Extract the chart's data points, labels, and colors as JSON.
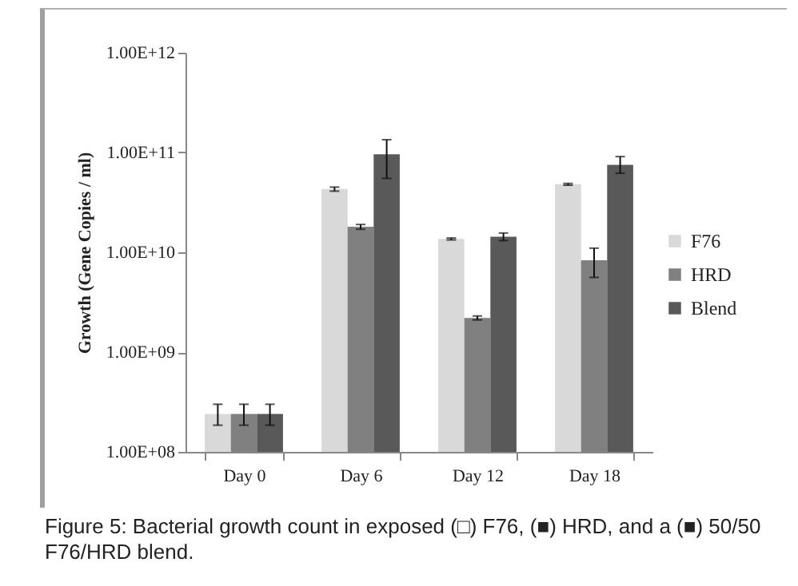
{
  "chart_data": {
    "type": "bar",
    "ylabel": "Growth (Gene Copies / ml)",
    "categories": [
      "Day 0",
      "Day 6",
      "Day 12",
      "Day 18"
    ],
    "series": [
      {
        "name": "F76",
        "color": "#d9d9d9",
        "values": [
          240000000.0,
          43000000000.0,
          13600000000.0,
          48000000000.0
        ],
        "errors": [
          [
            185000000.0,
            300000000.0
          ],
          [
            41000000000.0,
            45000000000.0
          ],
          [
            13300000000.0,
            13900000000.0
          ],
          [
            47000000000.0,
            49000000000.0
          ]
        ]
      },
      {
        "name": "HRD",
        "color": "#808080",
        "values": [
          240000000.0,
          18000000000.0,
          2200000000.0,
          8300000000.0
        ],
        "errors": [
          [
            185000000.0,
            300000000.0
          ],
          [
            17000000000.0,
            19000000000.0
          ],
          [
            2100000000.0,
            2300000000.0
          ],
          [
            5600000000.0,
            11000000000.0
          ]
        ]
      },
      {
        "name": "Blend",
        "color": "#595959",
        "values": [
          240000000.0,
          96000000000.0,
          14300000000.0,
          75000000000.0
        ],
        "errors": [
          [
            185000000.0,
            300000000.0
          ],
          [
            55000000000.0,
            134000000000.0
          ],
          [
            13100000000.0,
            15600000000.0
          ],
          [
            62000000000.0,
            91000000000.0
          ]
        ]
      }
    ],
    "log": true,
    "ylim": [
      100000000.0,
      1000000000000.0
    ],
    "yticks": [
      {
        "value": 100000000.0,
        "label": "1.00E+08"
      },
      {
        "value": 1000000000.0,
        "label": "1.00E+09"
      },
      {
        "value": 10000000000.0,
        "label": "1.00E+10"
      },
      {
        "value": 100000000000.0,
        "label": "1.00E+11"
      },
      {
        "value": 1000000000000.0,
        "label": "1.00E+12"
      }
    ],
    "grid": false,
    "legend": "right",
    "annotations": [
      "Figure 5: Bacterial growth count in exposed (□) F76, (■) HRD, and a (■) 50/50 F76/HRD blend."
    ]
  }
}
